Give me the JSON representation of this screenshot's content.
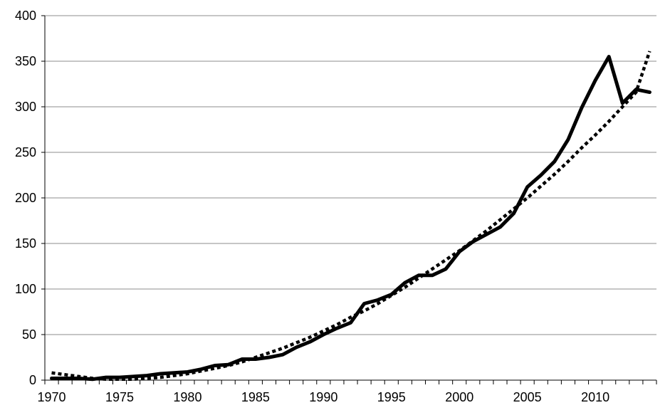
{
  "chart_data": {
    "type": "line",
    "title": "",
    "xlabel": "",
    "ylabel": "",
    "xlim": [
      1970,
      2014
    ],
    "ylim": [
      0,
      400
    ],
    "y_ticks": [
      "0",
      "50",
      "100",
      "150",
      "200",
      "250",
      "300",
      "350",
      "400"
    ],
    "x_ticks": [
      "1970",
      "1975",
      "1980",
      "1985",
      "1990",
      "1995",
      "2000",
      "2005",
      "2010"
    ],
    "grid": "horizontal",
    "legend": "none",
    "series": [
      {
        "style": "solid",
        "color": "#000000",
        "x": [
          1970,
          1971,
          1972,
          1973,
          1974,
          1975,
          1976,
          1977,
          1978,
          1979,
          1980,
          1981,
          1982,
          1983,
          1984,
          1985,
          1986,
          1987,
          1988,
          1989,
          1990,
          1991,
          1992,
          1993,
          1994,
          1995,
          1996,
          1997,
          1998,
          1999,
          2000,
          2001,
          2002,
          2003,
          2004,
          2005,
          2006,
          2007,
          2008,
          2009,
          2010,
          2011,
          2012,
          2013,
          2014
        ],
        "values": [
          2,
          2,
          2,
          1,
          3,
          3,
          4,
          5,
          7,
          8,
          9,
          12,
          16,
          17,
          23,
          23,
          25,
          28,
          36,
          42,
          50,
          57,
          63,
          84,
          88,
          94,
          107,
          115,
          115,
          122,
          141,
          152,
          160,
          168,
          183,
          212,
          225,
          240,
          264,
          299,
          329,
          355,
          304,
          319,
          316
        ]
      },
      {
        "style": "dotted",
        "color": "#000000",
        "x": [
          1970,
          1971,
          1972,
          1973,
          1974,
          1975,
          1976,
          1977,
          1978,
          1979,
          1980,
          1981,
          1982,
          1983,
          1984,
          1985,
          1986,
          1987,
          1988,
          1989,
          1990,
          1991,
          1992,
          1993,
          1994,
          1995,
          1996,
          1997,
          1998,
          1999,
          2000,
          2001,
          2002,
          2003,
          2004,
          2005,
          2006,
          2007,
          2008,
          2009,
          2010,
          2011,
          2012,
          2013,
          2014
        ],
        "values": [
          8,
          6,
          4,
          2,
          1,
          1,
          1,
          2,
          3,
          5,
          7,
          10,
          13,
          16,
          20,
          25,
          30,
          35,
          41,
          47,
          54,
          61,
          69,
          76,
          84,
          93,
          102,
          112,
          122,
          132,
          142,
          153,
          164,
          176,
          188,
          200,
          213,
          226,
          240,
          255,
          269,
          284,
          300,
          316,
          361
        ]
      }
    ]
  }
}
